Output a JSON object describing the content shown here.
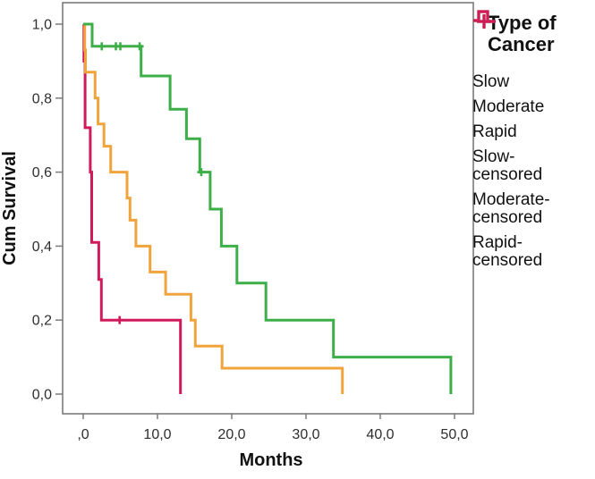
{
  "chart_data": {
    "type": "line",
    "subtype": "kaplan-meier-step",
    "title": "",
    "x_axis": {
      "label": "Months",
      "tick_labels": [
        ",0",
        "10,0",
        "20,0",
        "30,0",
        "40,0",
        "50,0"
      ],
      "tick_values": [
        0,
        10,
        20,
        30,
        40,
        50
      ],
      "range": [
        -2.8,
        52.5
      ]
    },
    "y_axis": {
      "label": "Cum Survival",
      "tick_labels": [
        "0,0",
        "0,2",
        "0,4",
        "0,6",
        "0,8",
        "1,0"
      ],
      "tick_values": [
        0,
        0.2,
        0.4,
        0.6,
        0.8,
        1.0
      ],
      "range": [
        -0.053,
        1.058
      ]
    },
    "grid": false,
    "legend": {
      "position": "right",
      "title_lines": [
        "Type of",
        "Cancer"
      ],
      "entries": [
        {
          "label_lines": [
            "Slow"
          ],
          "color": "#3EAE49",
          "glyph": "step"
        },
        {
          "label_lines": [
            "Moderate"
          ],
          "color": "#F0A43B",
          "glyph": "step"
        },
        {
          "label_lines": [
            "Rapid"
          ],
          "color": "#D11A5C",
          "glyph": "step"
        },
        {
          "label_lines": [
            "Slow-",
            "censored"
          ],
          "color": "#3EAE49",
          "glyph": "plus"
        },
        {
          "label_lines": [
            "Moderate-",
            "censored"
          ],
          "color": "#F0A43B",
          "glyph": "plus"
        },
        {
          "label_lines": [
            "Rapid-",
            "censored"
          ],
          "color": "#D11A5C",
          "glyph": "plus"
        }
      ]
    },
    "series": [
      {
        "name": "Rapid",
        "color": "#D11A5C",
        "points": [
          [
            0,
            1.0
          ],
          [
            0.1,
            1.0
          ],
          [
            0.1,
            0.9
          ],
          [
            0.25,
            0.9
          ],
          [
            0.25,
            0.72
          ],
          [
            0.95,
            0.72
          ],
          [
            0.95,
            0.6
          ],
          [
            1.15,
            0.6
          ],
          [
            1.15,
            0.41
          ],
          [
            2.1,
            0.41
          ],
          [
            2.1,
            0.31
          ],
          [
            2.45,
            0.31
          ],
          [
            2.45,
            0.2
          ],
          [
            13.1,
            0.2
          ],
          [
            13.1,
            0.0
          ]
        ],
        "censored": [
          [
            4.9,
            0.2
          ]
        ]
      },
      {
        "name": "Moderate",
        "color": "#F0A43B",
        "points": [
          [
            0,
            1.0
          ],
          [
            0.2,
            1.0
          ],
          [
            0.2,
            0.93
          ],
          [
            0.3,
            0.93
          ],
          [
            0.3,
            0.87
          ],
          [
            1.6,
            0.87
          ],
          [
            1.6,
            0.8
          ],
          [
            2.0,
            0.8
          ],
          [
            2.0,
            0.73
          ],
          [
            2.8,
            0.73
          ],
          [
            2.8,
            0.67
          ],
          [
            3.7,
            0.67
          ],
          [
            3.7,
            0.6
          ],
          [
            5.9,
            0.6
          ],
          [
            5.9,
            0.53
          ],
          [
            6.3,
            0.53
          ],
          [
            6.3,
            0.47
          ],
          [
            7.1,
            0.47
          ],
          [
            7.1,
            0.4
          ],
          [
            9.0,
            0.4
          ],
          [
            9.0,
            0.33
          ],
          [
            11.1,
            0.33
          ],
          [
            11.1,
            0.27
          ],
          [
            14.5,
            0.27
          ],
          [
            14.5,
            0.2
          ],
          [
            15.1,
            0.2
          ],
          [
            15.1,
            0.13
          ],
          [
            18.7,
            0.13
          ],
          [
            18.7,
            0.07
          ],
          [
            34.9,
            0.07
          ],
          [
            34.9,
            0.0
          ]
        ],
        "censored": []
      },
      {
        "name": "Slow",
        "color": "#3EAE49",
        "points": [
          [
            0,
            1.0
          ],
          [
            1.2,
            1.0
          ],
          [
            1.2,
            0.94
          ],
          [
            7.8,
            0.94
          ],
          [
            7.8,
            0.86
          ],
          [
            11.7,
            0.86
          ],
          [
            11.7,
            0.77
          ],
          [
            13.9,
            0.77
          ],
          [
            13.9,
            0.69
          ],
          [
            15.7,
            0.69
          ],
          [
            15.7,
            0.6
          ],
          [
            17.1,
            0.6
          ],
          [
            17.1,
            0.5
          ],
          [
            18.6,
            0.5
          ],
          [
            18.6,
            0.4
          ],
          [
            20.7,
            0.4
          ],
          [
            20.7,
            0.3
          ],
          [
            24.6,
            0.3
          ],
          [
            24.6,
            0.2
          ],
          [
            33.7,
            0.2
          ],
          [
            33.7,
            0.1
          ],
          [
            49.5,
            0.1
          ],
          [
            49.5,
            0.0
          ]
        ],
        "censored": [
          [
            2.5,
            0.94
          ],
          [
            4.4,
            0.94
          ],
          [
            5.0,
            0.94
          ],
          [
            7.6,
            0.94
          ],
          [
            15.9,
            0.6
          ]
        ]
      }
    ],
    "frame_color": "#7b7b7b",
    "background_color": "#ffffff"
  }
}
